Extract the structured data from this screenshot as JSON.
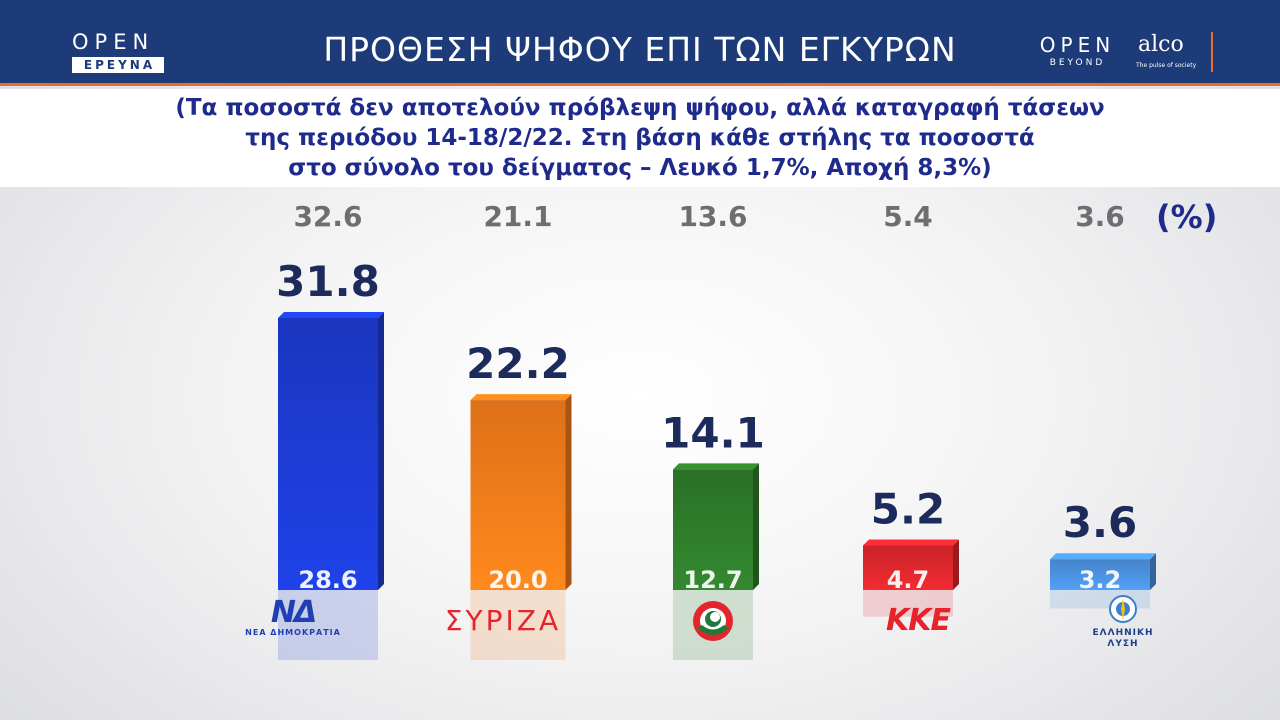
{
  "header": {
    "title": "ΠΡΟΘΕΣΗ ΨΗΦΟΥ ΕΠΙ ΤΩΝ ΕΓΚΥΡΩΝ",
    "logo_left": {
      "brand": "OPEN",
      "sub": "ΕΡΕΥΝΑ"
    },
    "logo_right_open": {
      "brand": "OPEN",
      "sub": "BEYOND"
    },
    "logo_alco": {
      "brand": "alco",
      "sub": "The pulse of society"
    },
    "colors": {
      "header_bg": "#1c3b78",
      "accent": "#ec6a2c"
    }
  },
  "subtitle": {
    "line1": "(Τα ποσοστά δεν αποτελούν πρόβλεψη ψήφου, αλλά καταγραφή τάσεων",
    "line2": "της περιόδου 14-18/2/22. Στη βάση κάθε στήλης τα ποσοστά",
    "line3": "στο σύνολο του δείγματος – Λευκό 1,7%, Αποχή 8,3%)"
  },
  "unit": "(%)",
  "party_logos": {
    "nd": {
      "mark": "ΝΔ",
      "name": "ΝΕΑ ΔΗΜΟΚΡΑΤΙΑ"
    },
    "syriza": {
      "name": "ΣΥΡΙΖΑ"
    },
    "pasok": {
      "icon": "pasok-sun-icon"
    },
    "kke": {
      "name": "ΚΚΕ"
    },
    "el": {
      "name1": "ΕΛΛΗΝΙΚΗ",
      "name2": "ΛΥΣΗ",
      "icon": "elliniki-lysi-emblem-icon"
    }
  },
  "chart_data": {
    "type": "bar",
    "categories": [
      "ΝΔ",
      "ΣΥΡΙΖΑ",
      "ΚΙΝΑΛ",
      "ΚΚΕ",
      "ΕΛΛΗΝΙΚΗ ΛΥΣΗ"
    ],
    "series": [
      {
        "values": [
          31.8,
          22.2,
          14.1,
          5.2,
          3.6
        ]
      },
      {
        "values": [
          32.6,
          21.1,
          13.6,
          5.4,
          3.6
        ]
      },
      {
        "values": [
          28.6,
          20.0,
          12.7,
          4.7,
          3.2
        ]
      }
    ],
    "colors": [
      "#1c3bd0",
      "#f07a1a",
      "#2e7a2a",
      "#d9262c",
      "#4a8fdc"
    ],
    "ylim": [
      0,
      35
    ],
    "grid": false,
    "legend": "none"
  }
}
